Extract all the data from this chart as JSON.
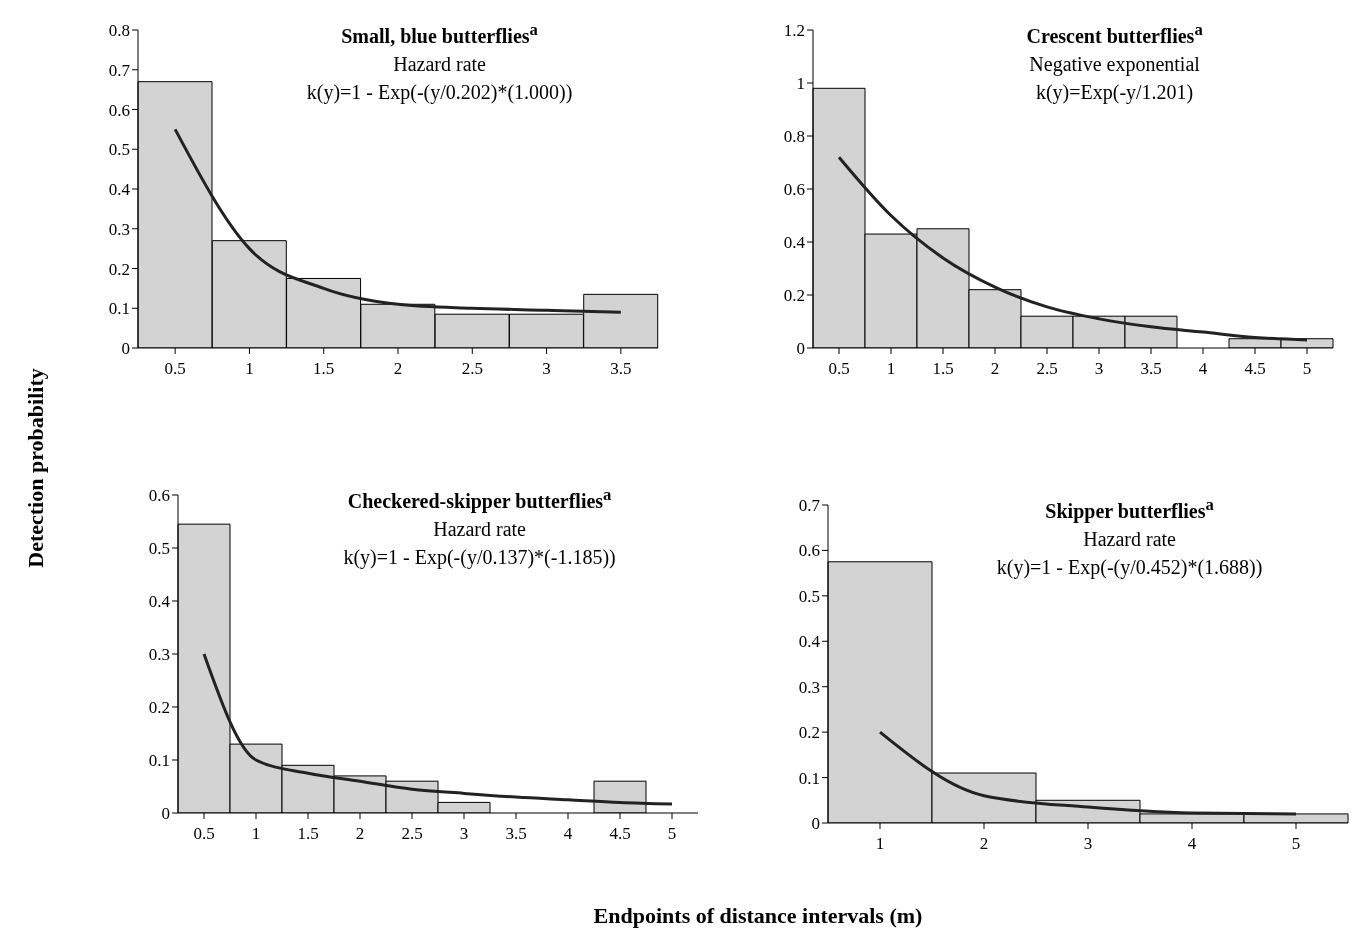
{
  "chart_data": [
    {
      "type": "bar",
      "title": "Small, blue butterflies$^{a}$",
      "subtitle": "Hazard rate",
      "annotations": [
        "k(y)=1 - Exp(-(y/0.202)*(1.000))"
      ],
      "ylabel": "Detection probability",
      "categories": [
        "0.5",
        "1",
        "1.5",
        "2",
        "2.5",
        "3",
        "3.5"
      ],
      "series": [
        {
          "color": "#d3d3d3",
          "values": [
            0.67,
            0.27,
            0.175,
            0.11,
            0.085,
            0.085,
            0.135
          ]
        },
        {
          "type": "line",
          "color": "#222222",
          "values": [
            0.55,
            0.25,
            0.15,
            0.11,
            0.1,
            0.095,
            0.09
          ]
        }
      ],
      "ylim": [
        0,
        0.8
      ],
      "yticks": [
        0,
        0.1,
        0.2,
        0.3,
        0.4,
        0.5,
        0.6,
        0.7,
        0.8
      ],
      "grid": false,
      "legend": false,
      "marker": "none"
    },
    {
      "type": "bar",
      "title": "Crescent butterflies$^{a}$",
      "subtitle": "Negative exponential",
      "annotations": [
        "k(y)=Exp(-y/1.201)"
      ],
      "categories": [
        "0.5",
        "1",
        "1.5",
        "2",
        "2.5",
        "3",
        "3.5",
        "4",
        "4.5",
        "5"
      ],
      "series": [
        {
          "color": "#d3d3d3",
          "values": [
            0.98,
            0.43,
            0.45,
            0.22,
            0.12,
            0.12,
            0.12,
            0,
            0.035,
            0.035
          ]
        },
        {
          "type": "line",
          "color": "#222222",
          "values": [
            0.72,
            0.5,
            0.34,
            0.23,
            0.155,
            0.11,
            0.08,
            0.06,
            0.04,
            0.03
          ]
        }
      ],
      "ylim": [
        0,
        1.2
      ],
      "yticks": [
        0,
        0.2,
        0.4,
        0.6,
        0.8,
        1,
        1.2
      ],
      "grid": false,
      "legend": false,
      "marker": "none"
    },
    {
      "type": "bar",
      "title": "Checkered-skipper butterflies$^{a}$",
      "subtitle": "Hazard rate",
      "annotations": [
        "k(y)=1 - Exp(-(y/0.137)*(-1.185))"
      ],
      "xlabel": "Endpoints of distance intervals (m)",
      "categories": [
        "0.5",
        "1",
        "1.5",
        "2",
        "2.5",
        "3",
        "3.5",
        "4",
        "4.5",
        "5"
      ],
      "series": [
        {
          "color": "#d3d3d3",
          "values": [
            0.545,
            0.13,
            0.09,
            0.07,
            0.06,
            0.02,
            0,
            0,
            0.06,
            0
          ]
        },
        {
          "type": "line",
          "color": "#222222",
          "values": [
            0.3,
            0.1,
            0.075,
            0.06,
            0.045,
            0.037,
            0.03,
            0.025,
            0.02,
            0.017
          ]
        }
      ],
      "ylim": [
        0,
        0.6
      ],
      "yticks": [
        0,
        0.1,
        0.2,
        0.3,
        0.4,
        0.5,
        0.6
      ],
      "grid": false,
      "legend": false,
      "marker": "none"
    },
    {
      "type": "bar",
      "title": "Skipper butterflies$^{a}$",
      "subtitle": "Hazard rate",
      "annotations": [
        "k(y)=1 - Exp(-(y/0.452)*(1.688))"
      ],
      "categories": [
        "1",
        "2",
        "3",
        "4",
        "5"
      ],
      "series": [
        {
          "color": "#d3d3d3",
          "values": [
            0.575,
            0.11,
            0.05,
            0.02,
            0.02
          ]
        },
        {
          "type": "line",
          "color": "#222222",
          "values": [
            0.2,
            0.06,
            0.035,
            0.022,
            0.02
          ]
        }
      ],
      "ylim": [
        0,
        0.7
      ],
      "yticks": [
        0,
        0.1,
        0.2,
        0.3,
        0.4,
        0.5,
        0.6,
        0.7
      ],
      "grid": false,
      "legend": false,
      "marker": "none"
    }
  ]
}
